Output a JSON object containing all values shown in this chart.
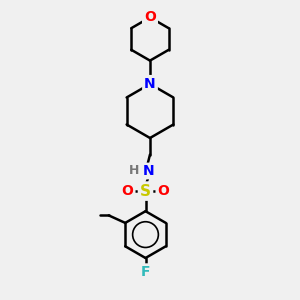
{
  "bg_color": "#f0f0f0",
  "bond_color": "#000000",
  "bond_width": 1.8,
  "atom_colors": {
    "O": "#ff0000",
    "N": "#0000ff",
    "S": "#c8c800",
    "F": "#33bbbb",
    "C": "#000000",
    "H": "#777777"
  },
  "font_size_atoms": 10,
  "figure_size": [
    3.0,
    3.0
  ],
  "dpi": 100
}
